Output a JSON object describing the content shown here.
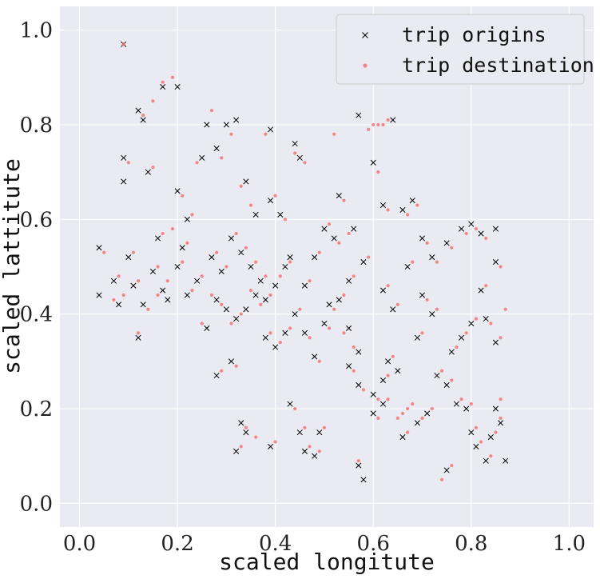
{
  "chart_data": {
    "type": "scatter",
    "title": "",
    "xlabel": "scaled longitute",
    "ylabel": "scaled lattitute",
    "xlim": [
      -0.04,
      1.05
    ],
    "ylim": [
      -0.05,
      1.05
    ],
    "x_ticks": [
      "0.0",
      "0.2",
      "0.4",
      "0.6",
      "0.8",
      "1.0"
    ],
    "y_ticks": [
      "0.0",
      "0.2",
      "0.4",
      "0.6",
      "0.8",
      "1.0"
    ],
    "grid": true,
    "legend_position": "top-right",
    "colors": {
      "background": "#eaeaf2",
      "grid": "#ffffff",
      "origins": "#000000",
      "destinations": "#f27575"
    },
    "series": [
      {
        "name": "trip origins",
        "marker": "x",
        "color": "#000000",
        "points": [
          [
            0.09,
            0.97
          ],
          [
            0.12,
            0.83
          ],
          [
            0.13,
            0.81
          ],
          [
            0.17,
            0.88
          ],
          [
            0.2,
            0.88
          ],
          [
            0.09,
            0.73
          ],
          [
            0.09,
            0.68
          ],
          [
            0.14,
            0.7
          ],
          [
            0.04,
            0.54
          ],
          [
            0.04,
            0.44
          ],
          [
            0.08,
            0.42
          ],
          [
            0.12,
            0.35
          ],
          [
            0.13,
            0.42
          ],
          [
            0.17,
            0.45
          ],
          [
            0.18,
            0.43
          ],
          [
            0.2,
            0.66
          ],
          [
            0.22,
            0.6
          ],
          [
            0.25,
            0.73
          ],
          [
            0.26,
            0.8
          ],
          [
            0.28,
            0.75
          ],
          [
            0.3,
            0.8
          ],
          [
            0.32,
            0.81
          ],
          [
            0.34,
            0.68
          ],
          [
            0.36,
            0.61
          ],
          [
            0.39,
            0.79
          ],
          [
            0.39,
            0.64
          ],
          [
            0.41,
            0.61
          ],
          [
            0.44,
            0.76
          ],
          [
            0.45,
            0.73
          ],
          [
            0.43,
            0.52
          ],
          [
            0.42,
            0.5
          ],
          [
            0.4,
            0.46
          ],
          [
            0.38,
            0.43
          ],
          [
            0.36,
            0.44
          ],
          [
            0.34,
            0.41
          ],
          [
            0.32,
            0.39
          ],
          [
            0.3,
            0.41
          ],
          [
            0.28,
            0.43
          ],
          [
            0.26,
            0.37
          ],
          [
            0.28,
            0.27
          ],
          [
            0.31,
            0.3
          ],
          [
            0.33,
            0.17
          ],
          [
            0.32,
            0.11
          ],
          [
            0.34,
            0.15
          ],
          [
            0.39,
            0.12
          ],
          [
            0.43,
            0.21
          ],
          [
            0.45,
            0.15
          ],
          [
            0.46,
            0.11
          ],
          [
            0.48,
            0.1
          ],
          [
            0.49,
            0.15
          ],
          [
            0.46,
            0.36
          ],
          [
            0.48,
            0.31
          ],
          [
            0.5,
            0.38
          ],
          [
            0.51,
            0.42
          ],
          [
            0.53,
            0.65
          ],
          [
            0.56,
            0.58
          ],
          [
            0.57,
            0.82
          ],
          [
            0.6,
            0.72
          ],
          [
            0.62,
            0.63
          ],
          [
            0.64,
            0.81
          ],
          [
            0.66,
            0.62
          ],
          [
            0.68,
            0.64
          ],
          [
            0.7,
            0.56
          ],
          [
            0.72,
            0.52
          ],
          [
            0.75,
            0.55
          ],
          [
            0.78,
            0.58
          ],
          [
            0.8,
            0.59
          ],
          [
            0.82,
            0.57
          ],
          [
            0.85,
            0.58
          ],
          [
            0.85,
            0.51
          ],
          [
            0.57,
            0.32
          ],
          [
            0.55,
            0.37
          ],
          [
            0.55,
            0.29
          ],
          [
            0.57,
            0.25
          ],
          [
            0.6,
            0.23
          ],
          [
            0.62,
            0.26
          ],
          [
            0.63,
            0.3
          ],
          [
            0.65,
            0.28
          ],
          [
            0.6,
            0.19
          ],
          [
            0.62,
            0.21
          ],
          [
            0.66,
            0.14
          ],
          [
            0.69,
            0.17
          ],
          [
            0.71,
            0.19
          ],
          [
            0.73,
            0.27
          ],
          [
            0.75,
            0.25
          ],
          [
            0.77,
            0.21
          ],
          [
            0.79,
            0.2
          ],
          [
            0.8,
            0.15
          ],
          [
            0.81,
            0.12
          ],
          [
            0.83,
            0.09
          ],
          [
            0.84,
            0.14
          ],
          [
            0.85,
            0.2
          ],
          [
            0.86,
            0.17
          ],
          [
            0.87,
            0.09
          ],
          [
            0.58,
            0.05
          ],
          [
            0.57,
            0.08
          ],
          [
            0.75,
            0.07
          ],
          [
            0.76,
            0.32
          ],
          [
            0.78,
            0.35
          ],
          [
            0.8,
            0.38
          ],
          [
            0.82,
            0.45
          ],
          [
            0.83,
            0.39
          ],
          [
            0.85,
            0.34
          ],
          [
            0.7,
            0.44
          ],
          [
            0.72,
            0.4
          ],
          [
            0.69,
            0.35
          ],
          [
            0.67,
            0.5
          ],
          [
            0.64,
            0.41
          ],
          [
            0.62,
            0.45
          ],
          [
            0.58,
            0.51
          ],
          [
            0.55,
            0.47
          ],
          [
            0.53,
            0.43
          ],
          [
            0.52,
            0.56
          ],
          [
            0.5,
            0.58
          ],
          [
            0.48,
            0.52
          ],
          [
            0.46,
            0.46
          ],
          [
            0.44,
            0.4
          ],
          [
            0.42,
            0.36
          ],
          [
            0.4,
            0.33
          ],
          [
            0.38,
            0.35
          ],
          [
            0.37,
            0.47
          ],
          [
            0.35,
            0.5
          ],
          [
            0.33,
            0.53
          ],
          [
            0.31,
            0.56
          ],
          [
            0.29,
            0.49
          ],
          [
            0.27,
            0.52
          ],
          [
            0.24,
            0.47
          ],
          [
            0.22,
            0.44
          ],
          [
            0.2,
            0.5
          ],
          [
            0.21,
            0.54
          ],
          [
            0.15,
            0.49
          ],
          [
            0.11,
            0.46
          ],
          [
            0.1,
            0.52
          ],
          [
            0.07,
            0.47
          ],
          [
            0.16,
            0.56
          ]
        ]
      },
      {
        "name": "trip destination",
        "marker": "dot",
        "color": "#f27575",
        "points": [
          [
            0.09,
            0.97
          ],
          [
            0.13,
            0.82
          ],
          [
            0.15,
            0.85
          ],
          [
            0.17,
            0.89
          ],
          [
            0.19,
            0.9
          ],
          [
            0.1,
            0.72
          ],
          [
            0.15,
            0.71
          ],
          [
            0.05,
            0.53
          ],
          [
            0.07,
            0.43
          ],
          [
            0.09,
            0.44
          ],
          [
            0.12,
            0.36
          ],
          [
            0.14,
            0.41
          ],
          [
            0.16,
            0.44
          ],
          [
            0.18,
            0.47
          ],
          [
            0.19,
            0.58
          ],
          [
            0.21,
            0.65
          ],
          [
            0.23,
            0.61
          ],
          [
            0.24,
            0.72
          ],
          [
            0.27,
            0.83
          ],
          [
            0.29,
            0.73
          ],
          [
            0.31,
            0.78
          ],
          [
            0.33,
            0.67
          ],
          [
            0.35,
            0.63
          ],
          [
            0.38,
            0.78
          ],
          [
            0.4,
            0.65
          ],
          [
            0.42,
            0.6
          ],
          [
            0.44,
            0.74
          ],
          [
            0.46,
            0.72
          ],
          [
            0.43,
            0.51
          ],
          [
            0.41,
            0.48
          ],
          [
            0.39,
            0.44
          ],
          [
            0.37,
            0.42
          ],
          [
            0.35,
            0.45
          ],
          [
            0.33,
            0.4
          ],
          [
            0.31,
            0.38
          ],
          [
            0.29,
            0.42
          ],
          [
            0.27,
            0.44
          ],
          [
            0.25,
            0.38
          ],
          [
            0.29,
            0.28
          ],
          [
            0.32,
            0.29
          ],
          [
            0.34,
            0.16
          ],
          [
            0.33,
            0.12
          ],
          [
            0.36,
            0.14
          ],
          [
            0.4,
            0.13
          ],
          [
            0.44,
            0.2
          ],
          [
            0.46,
            0.16
          ],
          [
            0.47,
            0.12
          ],
          [
            0.49,
            0.11
          ],
          [
            0.5,
            0.16
          ],
          [
            0.47,
            0.35
          ],
          [
            0.49,
            0.3
          ],
          [
            0.51,
            0.37
          ],
          [
            0.52,
            0.41
          ],
          [
            0.54,
            0.64
          ],
          [
            0.55,
            0.57
          ],
          [
            0.59,
            0.79
          ],
          [
            0.6,
            0.8
          ],
          [
            0.61,
            0.8
          ],
          [
            0.62,
            0.8
          ],
          [
            0.63,
            0.81
          ],
          [
            0.52,
            0.78
          ],
          [
            0.61,
            0.7
          ],
          [
            0.63,
            0.62
          ],
          [
            0.67,
            0.61
          ],
          [
            0.69,
            0.63
          ],
          [
            0.71,
            0.55
          ],
          [
            0.73,
            0.51
          ],
          [
            0.76,
            0.54
          ],
          [
            0.79,
            0.57
          ],
          [
            0.81,
            0.58
          ],
          [
            0.83,
            0.56
          ],
          [
            0.86,
            0.5
          ],
          [
            0.87,
            0.41
          ],
          [
            0.56,
            0.33
          ],
          [
            0.54,
            0.36
          ],
          [
            0.56,
            0.28
          ],
          [
            0.58,
            0.24
          ],
          [
            0.61,
            0.22
          ],
          [
            0.63,
            0.27
          ],
          [
            0.64,
            0.31
          ],
          [
            0.61,
            0.18
          ],
          [
            0.63,
            0.22
          ],
          [
            0.67,
            0.15
          ],
          [
            0.7,
            0.18
          ],
          [
            0.72,
            0.2
          ],
          [
            0.74,
            0.28
          ],
          [
            0.76,
            0.26
          ],
          [
            0.78,
            0.22
          ],
          [
            0.8,
            0.21
          ],
          [
            0.81,
            0.16
          ],
          [
            0.82,
            0.13
          ],
          [
            0.84,
            0.1
          ],
          [
            0.85,
            0.15
          ],
          [
            0.86,
            0.22
          ],
          [
            0.86,
            0.18
          ],
          [
            0.74,
            0.05
          ],
          [
            0.76,
            0.08
          ],
          [
            0.57,
            0.09
          ],
          [
            0.77,
            0.33
          ],
          [
            0.79,
            0.36
          ],
          [
            0.81,
            0.39
          ],
          [
            0.83,
            0.46
          ],
          [
            0.84,
            0.38
          ],
          [
            0.86,
            0.35
          ],
          [
            0.71,
            0.43
          ],
          [
            0.73,
            0.41
          ],
          [
            0.7,
            0.36
          ],
          [
            0.68,
            0.51
          ],
          [
            0.65,
            0.42
          ],
          [
            0.63,
            0.46
          ],
          [
            0.59,
            0.52
          ],
          [
            0.56,
            0.48
          ],
          [
            0.54,
            0.44
          ],
          [
            0.53,
            0.55
          ],
          [
            0.51,
            0.59
          ],
          [
            0.49,
            0.53
          ],
          [
            0.47,
            0.47
          ],
          [
            0.45,
            0.41
          ],
          [
            0.43,
            0.37
          ],
          [
            0.41,
            0.34
          ],
          [
            0.39,
            0.36
          ],
          [
            0.38,
            0.48
          ],
          [
            0.36,
            0.51
          ],
          [
            0.34,
            0.54
          ],
          [
            0.32,
            0.57
          ],
          [
            0.3,
            0.5
          ],
          [
            0.28,
            0.53
          ],
          [
            0.25,
            0.48
          ],
          [
            0.23,
            0.45
          ],
          [
            0.21,
            0.51
          ],
          [
            0.22,
            0.55
          ],
          [
            0.16,
            0.5
          ],
          [
            0.12,
            0.47
          ],
          [
            0.11,
            0.53
          ],
          [
            0.08,
            0.48
          ],
          [
            0.17,
            0.57
          ],
          [
            0.65,
            0.18
          ],
          [
            0.66,
            0.19
          ],
          [
            0.67,
            0.2
          ],
          [
            0.68,
            0.21
          ]
        ]
      }
    ]
  }
}
